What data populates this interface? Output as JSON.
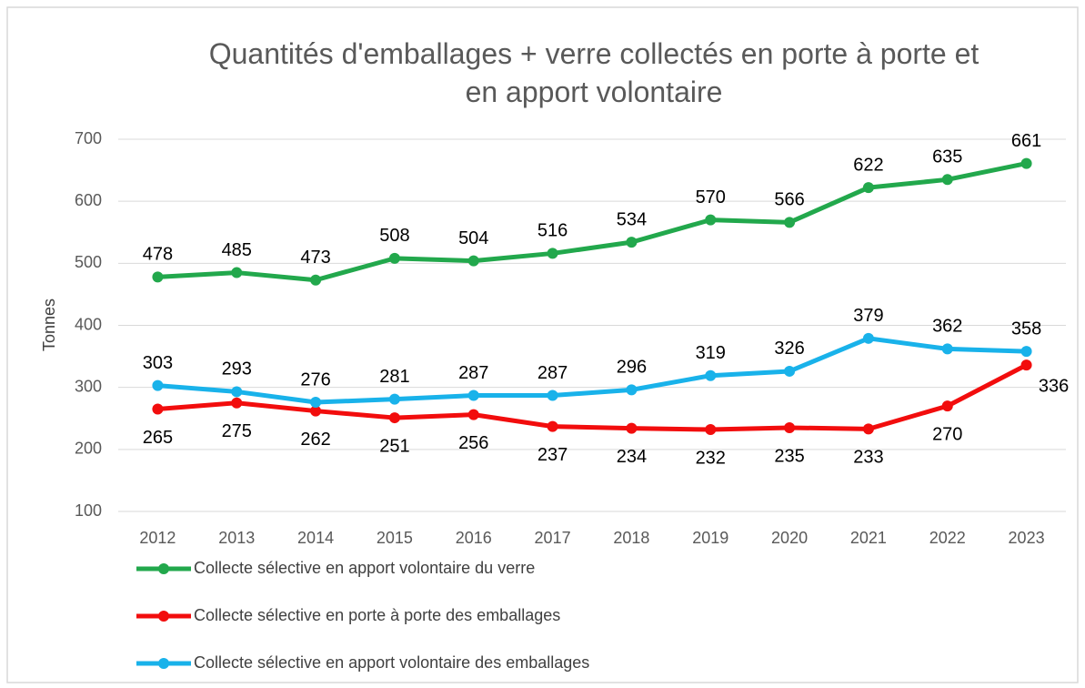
{
  "chart_data": {
    "type": "line",
    "title": "Quantités d'emballages + verre collectés en porte à porte et en apport volontaire",
    "y_label": "Tonnes",
    "categories": [
      "2012",
      "2013",
      "2014",
      "2015",
      "2016",
      "2017",
      "2018",
      "2019",
      "2020",
      "2021",
      "2022",
      "2023"
    ],
    "series": [
      {
        "name": "Collecte sélective en apport volontaire du verre",
        "color": "#22a84c",
        "values": [
          478,
          485,
          473,
          508,
          504,
          516,
          534,
          570,
          566,
          622,
          635,
          661
        ]
      },
      {
        "name": "Collecte sélective en porte à porte des emballages",
        "color": "#f20d0d",
        "values": [
          265,
          275,
          262,
          251,
          256,
          237,
          234,
          232,
          235,
          233,
          270,
          336
        ]
      },
      {
        "name": "Collecte sélective en apport volontaire des emballages",
        "color": "#19b2ea",
        "values": [
          303,
          293,
          276,
          281,
          287,
          287,
          296,
          319,
          326,
          379,
          362,
          358
        ]
      }
    ],
    "ylim": [
      100,
      700
    ],
    "yticks": [
      100,
      200,
      300,
      400,
      500,
      600,
      700
    ],
    "grid": true,
    "legend": "bottom"
  }
}
